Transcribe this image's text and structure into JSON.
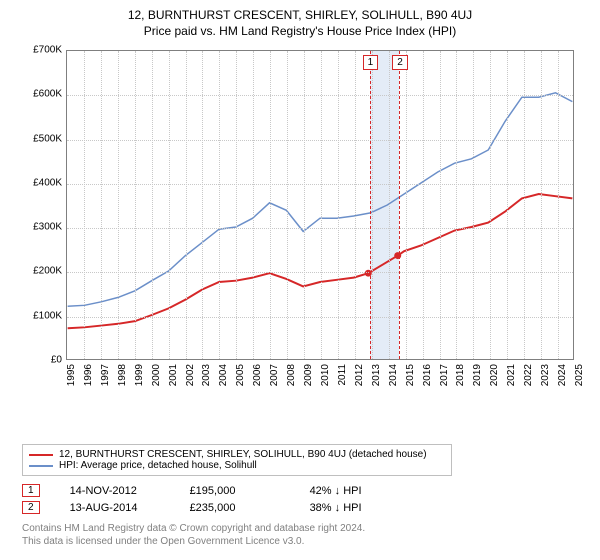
{
  "title": "12, BURNTHURST CRESCENT, SHIRLEY, SOLIHULL, B90 4UJ",
  "subtitle": "Price paid vs. HM Land Registry's House Price Index (HPI)",
  "chart": {
    "type": "line",
    "background_color": "#ffffff",
    "grid_color": "#c8c8c8",
    "border_color": "#7f7f7f",
    "title_fontsize": 12,
    "label_fontsize": 10,
    "ylabel_prefix": "£",
    "ylim": [
      0,
      700000
    ],
    "ytick_step": 100000,
    "yticks": [
      "£0",
      "£100K",
      "£200K",
      "£300K",
      "£400K",
      "£500K",
      "£600K",
      "£700K"
    ],
    "xlim": [
      1995,
      2025
    ],
    "xticks": [
      1995,
      1996,
      1997,
      1998,
      1999,
      2000,
      2001,
      2002,
      2003,
      2004,
      2005,
      2006,
      2007,
      2008,
      2009,
      2010,
      2011,
      2012,
      2013,
      2014,
      2015,
      2016,
      2017,
      2018,
      2019,
      2020,
      2021,
      2022,
      2023,
      2024,
      2025
    ],
    "series": [
      {
        "id": "price_paid",
        "label": "12, BURNTHURST CRESCENT, SHIRLEY, SOLIHULL, B90 4UJ (detached house)",
        "color": "#d62728",
        "line_width": 2,
        "x": [
          1995,
          1996,
          1997,
          1998,
          1999,
          2000,
          2001,
          2002,
          2003,
          2004,
          2005,
          2006,
          2007,
          2008,
          2009,
          2010,
          2011,
          2012,
          2012.87,
          2014.62,
          2015,
          2016,
          2017,
          2018,
          2019,
          2020,
          2021,
          2022,
          2023,
          2024,
          2025
        ],
        "y": [
          70000,
          72000,
          76000,
          80000,
          86000,
          100000,
          115000,
          135000,
          158000,
          175000,
          178000,
          185000,
          195000,
          182000,
          165000,
          175000,
          180000,
          185000,
          195000,
          235000,
          245000,
          258000,
          275000,
          292000,
          300000,
          310000,
          335000,
          365000,
          375000,
          370000,
          365000
        ]
      },
      {
        "id": "hpi",
        "label": "HPI: Average price, detached house, Solihull",
        "color": "#6b8fc9",
        "line_width": 1.5,
        "x": [
          1995,
          1996,
          1997,
          1998,
          1999,
          2000,
          2001,
          2002,
          2003,
          2004,
          2005,
          2006,
          2007,
          2008,
          2009,
          2010,
          2011,
          2012,
          2013,
          2014,
          2015,
          2016,
          2017,
          2018,
          2019,
          2020,
          2021,
          2022,
          2023,
          2024,
          2025
        ],
        "y": [
          120000,
          122000,
          130000,
          140000,
          155000,
          178000,
          200000,
          235000,
          265000,
          295000,
          300000,
          320000,
          355000,
          338000,
          290000,
          320000,
          320000,
          325000,
          332000,
          350000,
          375000,
          400000,
          425000,
          445000,
          455000,
          475000,
          540000,
          595000,
          595000,
          605000,
          585000
        ]
      }
    ],
    "markers": [
      {
        "index": "1",
        "x": 2012.87,
        "y": 195000,
        "color": "#d62728"
      },
      {
        "index": "2",
        "x": 2014.62,
        "y": 235000,
        "color": "#d62728"
      }
    ],
    "marker_band_color": "#e4ecf7"
  },
  "legend": {
    "items": [
      {
        "label": "12, BURNTHURST CRESCENT, SHIRLEY, SOLIHULL, B90 4UJ (detached house)",
        "color": "#d62728"
      },
      {
        "label": "HPI: Average price, detached house, Solihull",
        "color": "#6b8fc9"
      }
    ]
  },
  "sales": [
    {
      "index": "1",
      "date": "14-NOV-2012",
      "price": "£195,000",
      "delta": "42% ↓ HPI",
      "color": "#d62728"
    },
    {
      "index": "2",
      "date": "13-AUG-2014",
      "price": "£235,000",
      "delta": "38% ↓ HPI",
      "color": "#d62728"
    }
  ],
  "attribution": {
    "line1": "Contains HM Land Registry data © Crown copyright and database right 2024.",
    "line2": "This data is licensed under the Open Government Licence v3.0."
  }
}
